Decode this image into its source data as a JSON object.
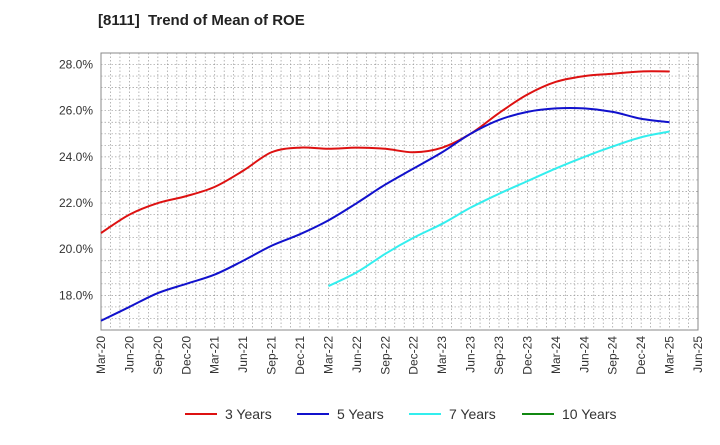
{
  "chart_data": {
    "type": "line",
    "title": "[8111]  Trend of Mean of ROE",
    "xlabel": "",
    "ylabel": "",
    "x_ticks": [
      "Mar-20",
      "Jun-20",
      "Sep-20",
      "Dec-20",
      "Mar-21",
      "Jun-21",
      "Sep-21",
      "Dec-21",
      "Mar-22",
      "Jun-22",
      "Sep-22",
      "Dec-22",
      "Mar-23",
      "Jun-23",
      "Sep-23",
      "Dec-23",
      "Mar-24",
      "Jun-24",
      "Sep-24",
      "Dec-24",
      "Mar-25",
      "Jun-25"
    ],
    "y_ticks": [
      "18.0%",
      "20.0%",
      "22.0%",
      "24.0%",
      "26.0%",
      "28.0%"
    ],
    "y_tick_values": [
      18,
      20,
      22,
      24,
      26,
      28
    ],
    "ylim": [
      16.5,
      28.5
    ],
    "grid": true,
    "legend_position": "bottom",
    "series": [
      {
        "name": "3 Years",
        "color": "#dd1111",
        "points": [
          [
            "Mar-20",
            20.7
          ],
          [
            "Jun-20",
            21.5
          ],
          [
            "Sep-20",
            22.0
          ],
          [
            "Dec-20",
            22.3
          ],
          [
            "Mar-21",
            22.7
          ],
          [
            "Jun-21",
            23.4
          ],
          [
            "Sep-21",
            24.2
          ],
          [
            "Dec-21",
            24.4
          ],
          [
            "Mar-22",
            24.35
          ],
          [
            "Jun-22",
            24.4
          ],
          [
            "Sep-22",
            24.35
          ],
          [
            "Dec-22",
            24.2
          ],
          [
            "Mar-23",
            24.4
          ],
          [
            "Jun-23",
            25.0
          ],
          [
            "Sep-23",
            25.9
          ],
          [
            "Dec-23",
            26.7
          ],
          [
            "Mar-24",
            27.25
          ],
          [
            "Jun-24",
            27.5
          ],
          [
            "Sep-24",
            27.6
          ],
          [
            "Dec-24",
            27.7
          ],
          [
            "Mar-25",
            27.7
          ]
        ]
      },
      {
        "name": "5 Years",
        "color": "#1111cc",
        "points": [
          [
            "Mar-20",
            16.9
          ],
          [
            "Jun-20",
            17.5
          ],
          [
            "Sep-20",
            18.1
          ],
          [
            "Dec-20",
            18.5
          ],
          [
            "Mar-21",
            18.9
          ],
          [
            "Jun-21",
            19.5
          ],
          [
            "Sep-21",
            20.15
          ],
          [
            "Dec-21",
            20.65
          ],
          [
            "Mar-22",
            21.25
          ],
          [
            "Jun-22",
            22.0
          ],
          [
            "Sep-22",
            22.8
          ],
          [
            "Dec-22",
            23.5
          ],
          [
            "Mar-23",
            24.2
          ],
          [
            "Jun-23",
            25.0
          ],
          [
            "Sep-23",
            25.6
          ],
          [
            "Dec-23",
            25.95
          ],
          [
            "Mar-24",
            26.1
          ],
          [
            "Jun-24",
            26.1
          ],
          [
            "Sep-24",
            25.95
          ],
          [
            "Dec-24",
            25.65
          ],
          [
            "Mar-25",
            25.5
          ]
        ]
      },
      {
        "name": "7 Years",
        "color": "#33eeee",
        "points": [
          [
            "Mar-22",
            18.4
          ],
          [
            "Jun-22",
            19.0
          ],
          [
            "Sep-22",
            19.8
          ],
          [
            "Dec-22",
            20.5
          ],
          [
            "Mar-23",
            21.1
          ],
          [
            "Jun-23",
            21.8
          ],
          [
            "Sep-23",
            22.4
          ],
          [
            "Dec-23",
            22.95
          ],
          [
            "Mar-24",
            23.5
          ],
          [
            "Jun-24",
            24.0
          ],
          [
            "Sep-24",
            24.45
          ],
          [
            "Dec-24",
            24.85
          ],
          [
            "Mar-25",
            25.1
          ]
        ]
      },
      {
        "name": "10 Years",
        "color": "#118811",
        "points": []
      }
    ]
  }
}
